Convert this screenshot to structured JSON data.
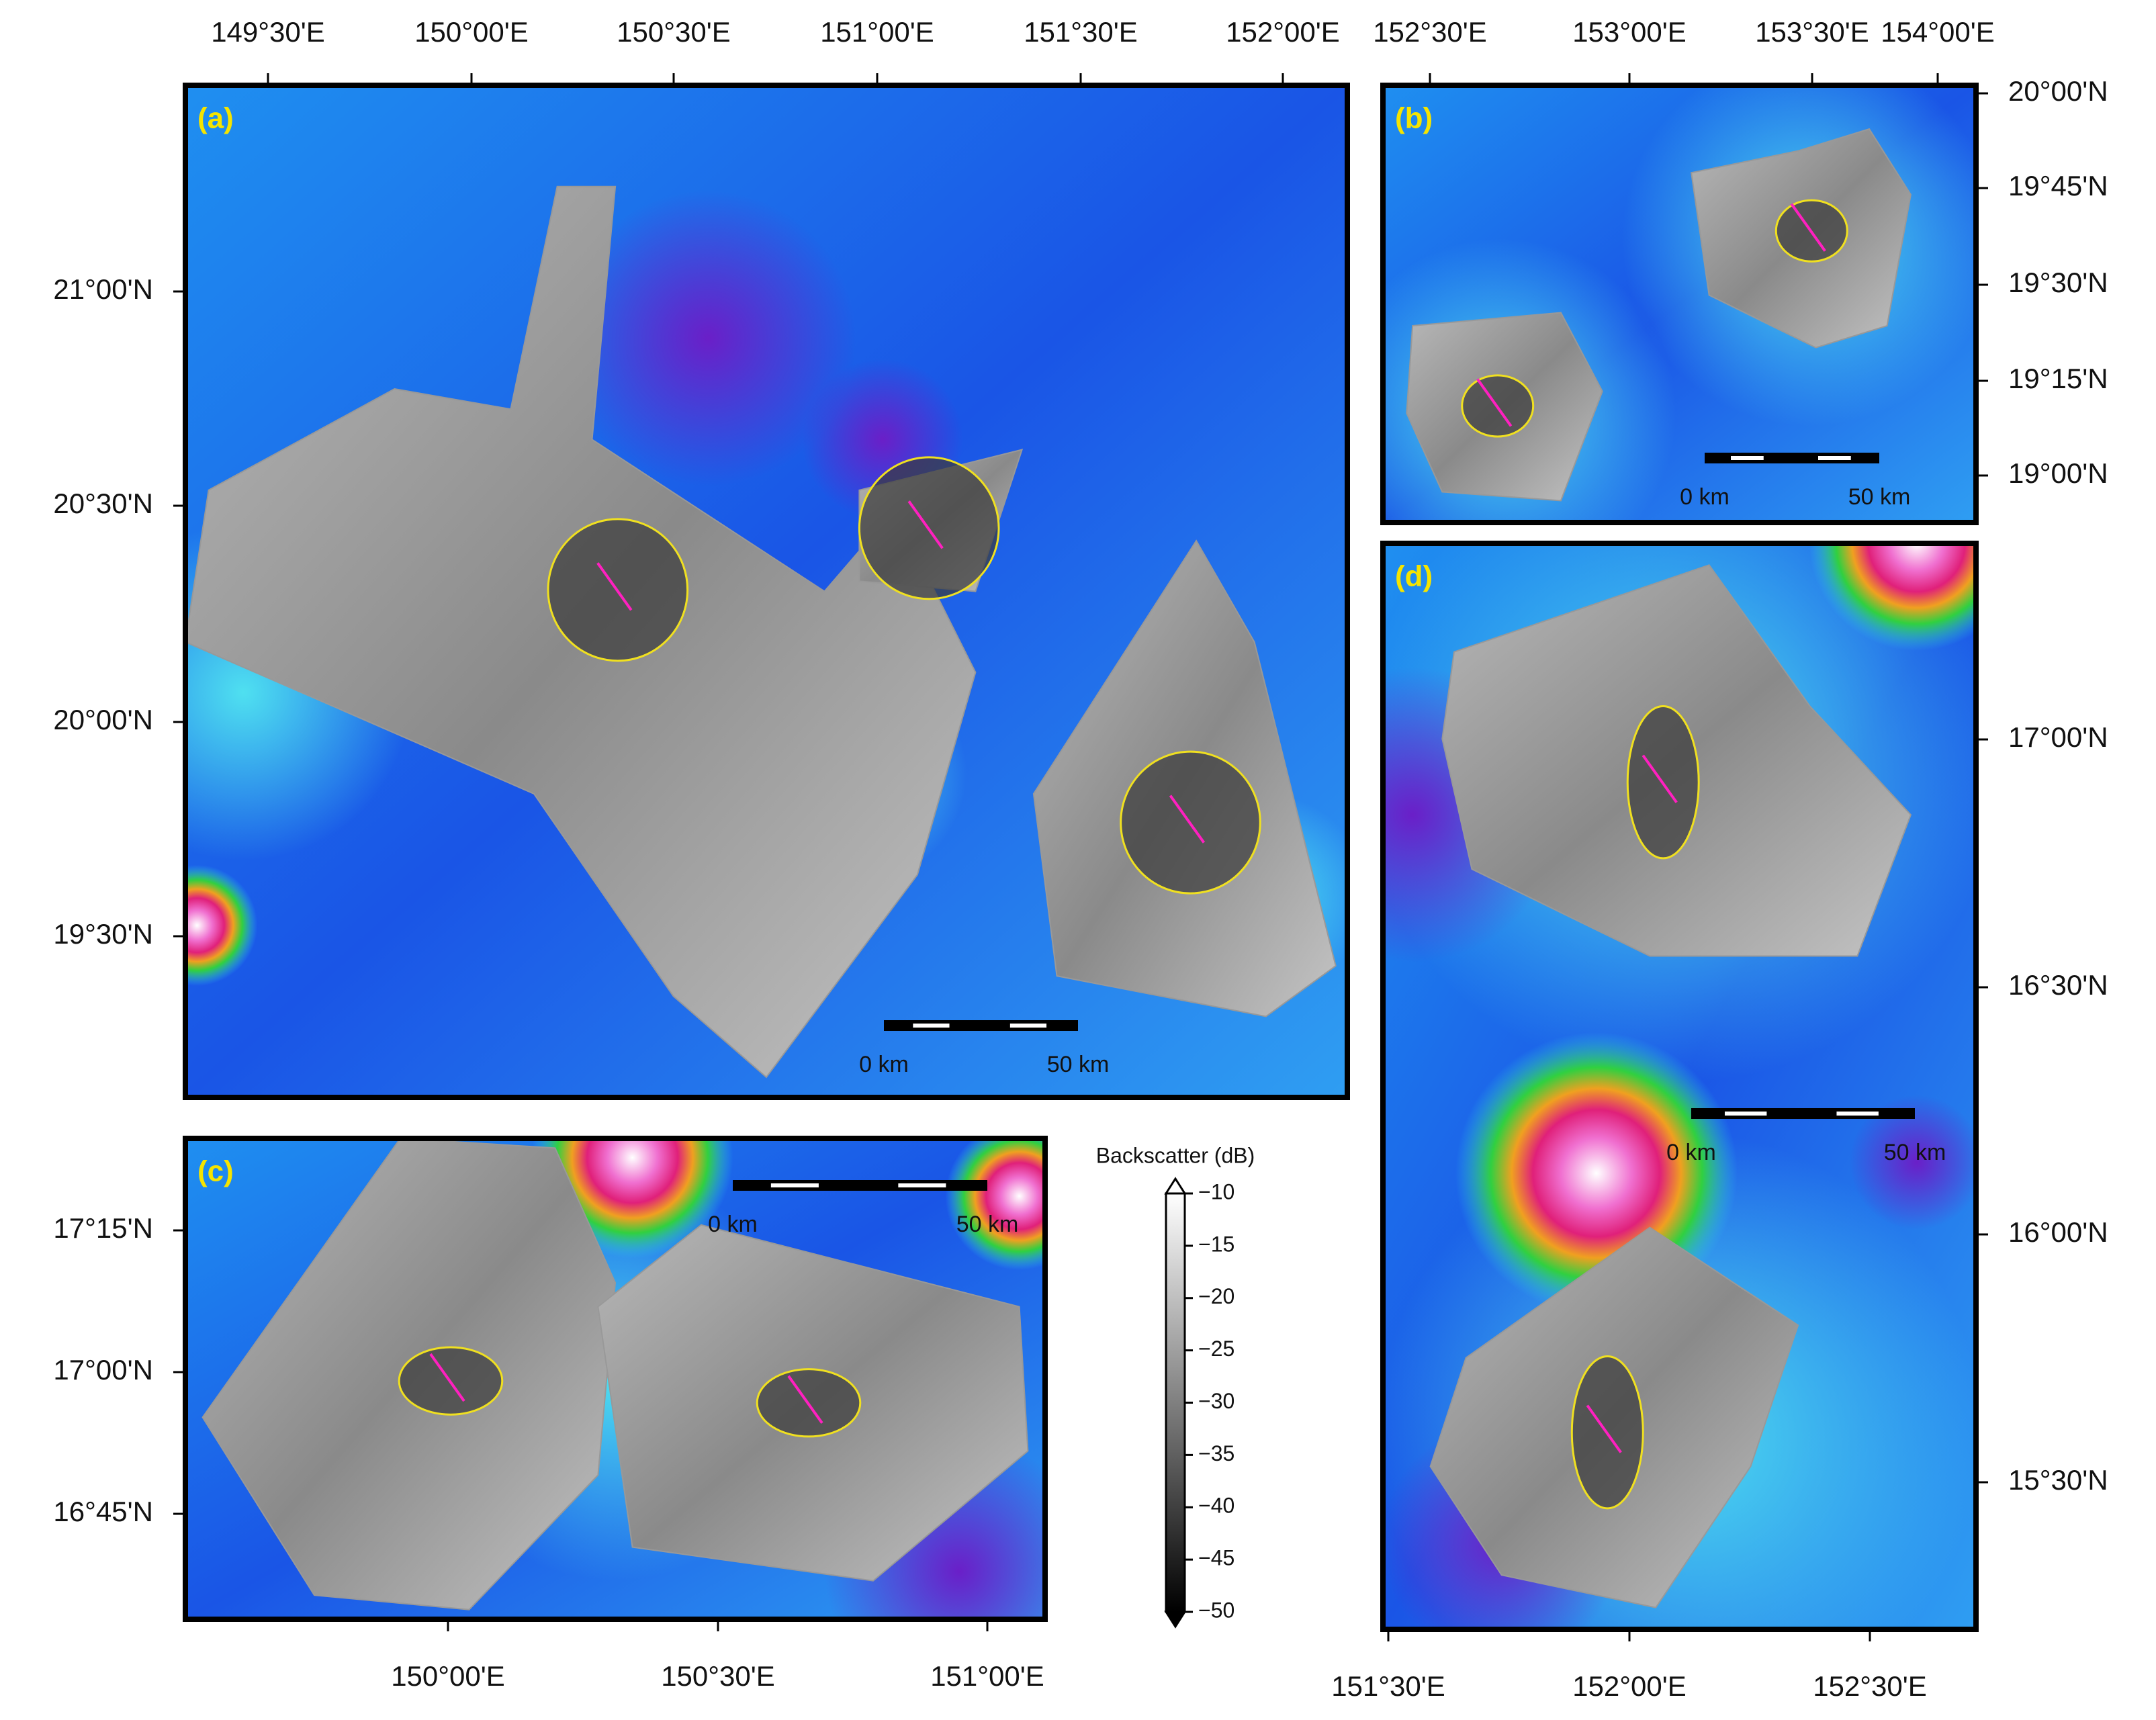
{
  "panels": [
    {
      "label": "(a)",
      "top_ticks": [
        "149°30'E",
        "150°00'E",
        "150°30'E",
        "151°00'E",
        "151°30'E",
        "152°00'E"
      ],
      "left_ticks": [
        "21°00'N",
        "20°30'N",
        "20°00'N",
        "19°30'N"
      ],
      "scale_bar": [
        "0 km",
        "50 km"
      ]
    },
    {
      "label": "(b)",
      "top_ticks": [
        "152°30'E",
        "153°00'E",
        "153°30'E",
        "154°00'E"
      ],
      "right_ticks": [
        "20°00'N",
        "19°45'N",
        "19°30'N",
        "19°15'N",
        "19°00'N"
      ],
      "scale_bar": [
        "0 km",
        "50 km"
      ]
    },
    {
      "label": "(c)",
      "left_ticks": [
        "17°15'N",
        "17°00'N",
        "16°45'N"
      ],
      "bottom_ticks": [
        "150°00'E",
        "150°30'E",
        "151°00'E"
      ],
      "scale_bar": [
        "0 km",
        "50 km"
      ]
    },
    {
      "label": "(d)",
      "right_ticks": [
        "17°00'N",
        "16°30'N",
        "16°00'N",
        "15°30'N"
      ],
      "bottom_ticks": [
        "151°30'E",
        "152°00'E",
        "152°30'E"
      ],
      "scale_bar": [
        "0 km",
        "50 km"
      ]
    }
  ],
  "colorbar": {
    "title": "Backscatter (dB)",
    "ylim": [
      -50,
      -10
    ],
    "ticks": [
      {
        "value": -10,
        "label": "−10"
      },
      {
        "value": -15,
        "label": "−15"
      },
      {
        "value": -20,
        "label": "−20"
      },
      {
        "value": -25,
        "label": "−25"
      },
      {
        "value": -30,
        "label": "−30"
      },
      {
        "value": -35,
        "label": "−35"
      },
      {
        "value": -40,
        "label": "−40"
      },
      {
        "value": -45,
        "label": "−45"
      },
      {
        "value": -50,
        "label": "−50"
      }
    ]
  }
}
